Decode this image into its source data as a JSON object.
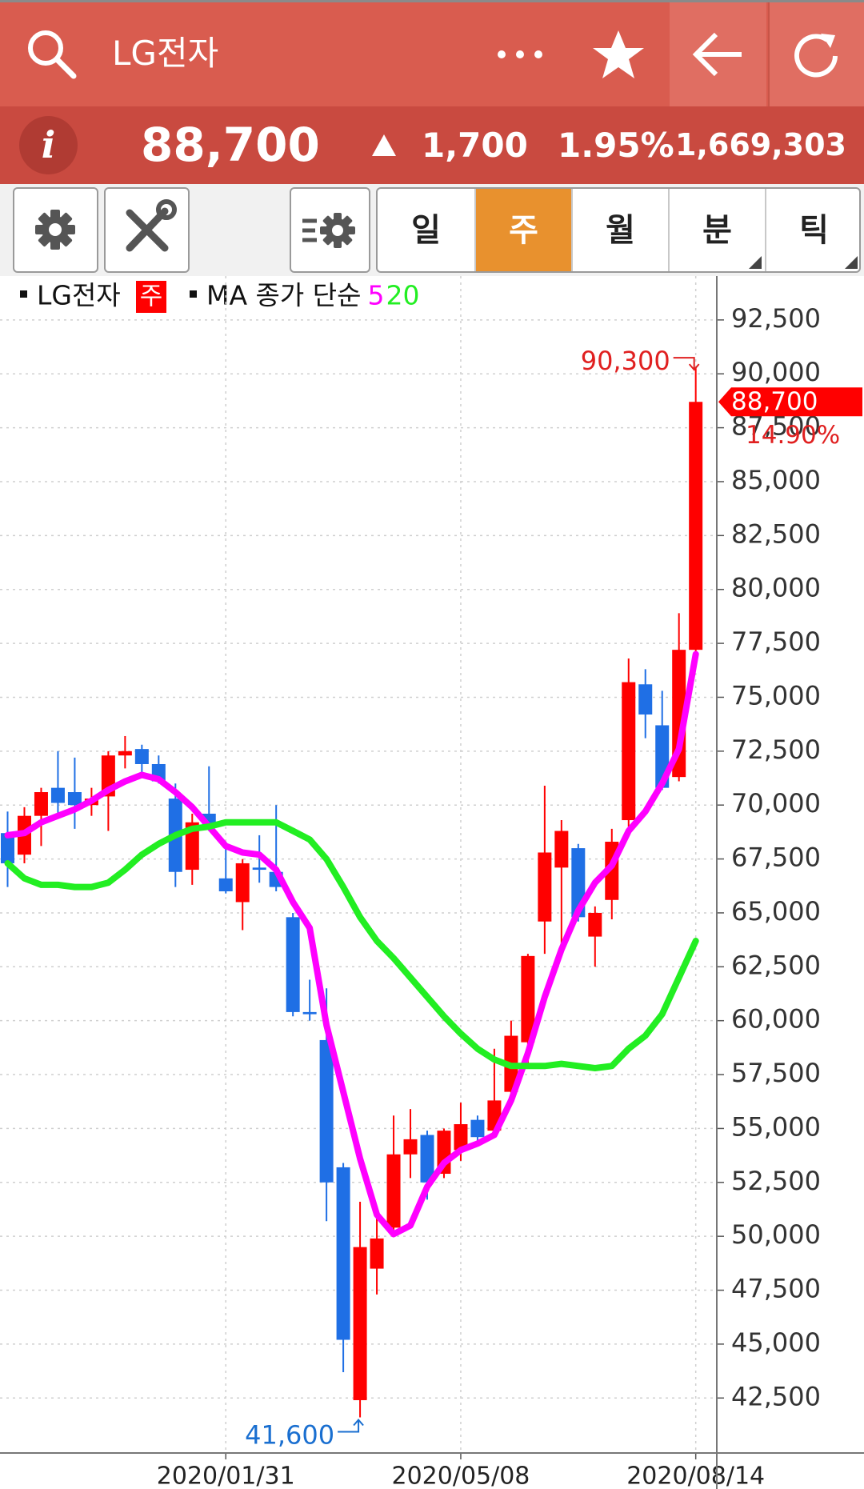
{
  "header": {
    "title": "LG전자"
  },
  "quote": {
    "info_icon": "i",
    "price": "88,700",
    "change": "1,700",
    "rate": "1.95%",
    "volume": "1,669,303"
  },
  "toolbar": {
    "tabs": [
      "일",
      "주",
      "월",
      "분",
      "틱"
    ],
    "active_tab": 1
  },
  "chart_data": {
    "type": "candlestick",
    "series_name": "LG전자",
    "period_badge": "주",
    "ma_label": "MA 종가 단순",
    "up_color": "#ff0000",
    "down_color": "#1f6fe5",
    "categories": [
      null,
      null,
      null,
      null,
      null,
      null,
      null,
      null,
      null,
      null,
      null,
      null,
      null,
      "2020/01/31",
      null,
      null,
      null,
      null,
      null,
      null,
      null,
      null,
      null,
      null,
      null,
      null,
      null,
      "2020/05/08",
      null,
      null,
      null,
      null,
      null,
      null,
      null,
      null,
      null,
      null,
      null,
      null,
      null,
      "2020/08/14"
    ],
    "open": [
      68700,
      67700,
      69500,
      70800,
      70600,
      70000,
      70400,
      72300,
      72600,
      71900,
      70300,
      67000,
      69600,
      66600,
      65500,
      67100,
      66900,
      64800,
      60400,
      59100,
      53200,
      42400,
      48500,
      50400,
      53800,
      54700,
      52900,
      54000,
      55400,
      54900,
      56700,
      59000,
      64600,
      67100,
      68000,
      63900,
      65600,
      69300,
      75600,
      73700,
      71300,
      77200
    ],
    "high": [
      69700,
      69900,
      70800,
      72500,
      72200,
      70800,
      72500,
      73200,
      72800,
      72300,
      71000,
      69600,
      71800,
      68000,
      67500,
      68600,
      70000,
      65000,
      61900,
      61500,
      53400,
      51600,
      51000,
      55600,
      55900,
      54900,
      55000,
      56200,
      55600,
      58700,
      60000,
      63100,
      70900,
      69300,
      68200,
      65300,
      68900,
      76800,
      76300,
      75300,
      78900,
      90300
    ],
    "low": [
      66200,
      67300,
      68100,
      69500,
      68900,
      69500,
      68800,
      71700,
      71400,
      71000,
      66200,
      66300,
      68800,
      65900,
      64200,
      66400,
      66000,
      60200,
      60000,
      50700,
      43700,
      41600,
      47300,
      50100,
      52700,
      51700,
      52700,
      53500,
      54300,
      54700,
      56300,
      58000,
      63100,
      63000,
      64600,
      62500,
      64700,
      69000,
      73100,
      70700,
      71100,
      77100
    ],
    "close": [
      67300,
      69500,
      70600,
      70100,
      70000,
      70300,
      72300,
      72500,
      71900,
      71100,
      66900,
      69200,
      69100,
      66000,
      67300,
      67000,
      66200,
      60400,
      60300,
      52500,
      45200,
      49500,
      49900,
      53800,
      54500,
      52500,
      54900,
      55200,
      54600,
      56300,
      59300,
      63000,
      67800,
      68800,
      64800,
      65000,
      68300,
      75700,
      74200,
      70800,
      77200,
      88700
    ],
    "ma": [
      {
        "name": "5",
        "color": "#ff00ff",
        "values": [
          68600,
          68700,
          69200,
          69500,
          69800,
          70200,
          70700,
          71100,
          71400,
          71200,
          70600,
          69900,
          69000,
          68100,
          67800,
          67700,
          67000,
          65500,
          64300,
          59800,
          56700,
          53600,
          51000,
          50100,
          50500,
          52300,
          53400,
          54000,
          54300,
          54700,
          56300,
          58500,
          61100,
          63300,
          65100,
          66400,
          67200,
          68800,
          69700,
          71000,
          72600,
          77000
        ]
      },
      {
        "name": "20",
        "color": "#22ee22",
        "values": [
          67300,
          66600,
          66300,
          66300,
          66200,
          66200,
          66400,
          67000,
          67700,
          68200,
          68600,
          68900,
          69000,
          69200,
          69200,
          69200,
          69200,
          68800,
          68400,
          67500,
          66200,
          64800,
          63700,
          62900,
          62000,
          61100,
          60200,
          59400,
          58700,
          58200,
          57900,
          57900,
          57900,
          58000,
          57900,
          57800,
          57900,
          58700,
          59300,
          60300,
          62000,
          63700
        ]
      }
    ],
    "ylim": [
      39950,
      94350
    ],
    "yticks": [
      {
        "value": 42500,
        "label": "42,500"
      },
      {
        "value": 45000,
        "label": "45,000"
      },
      {
        "value": 47500,
        "label": "47,500"
      },
      {
        "value": 50000,
        "label": "50,000"
      },
      {
        "value": 52500,
        "label": "52,500"
      },
      {
        "value": 55000,
        "label": "55,000"
      },
      {
        "value": 57500,
        "label": "57,500"
      },
      {
        "value": 60000,
        "label": "60,000"
      },
      {
        "value": 62500,
        "label": "62,500"
      },
      {
        "value": 65000,
        "label": "65,000"
      },
      {
        "value": 67500,
        "label": "67,500"
      },
      {
        "value": 70000,
        "label": "70,000"
      },
      {
        "value": 72500,
        "label": "72,500"
      },
      {
        "value": 75000,
        "label": "75,000"
      },
      {
        "value": 77500,
        "label": "77,500"
      },
      {
        "value": 80000,
        "label": "80,000"
      },
      {
        "value": 82500,
        "label": "82,500"
      },
      {
        "value": 85000,
        "label": "85,000"
      },
      {
        "value": 87500,
        "label": "87,500"
      },
      {
        "value": 90000,
        "label": "90,000"
      },
      {
        "value": 92500,
        "label": "92,500"
      }
    ],
    "grid": true,
    "max_label": "90,300",
    "min_label": "41,600",
    "last_label": "88,700",
    "change_label": "14.90%"
  }
}
